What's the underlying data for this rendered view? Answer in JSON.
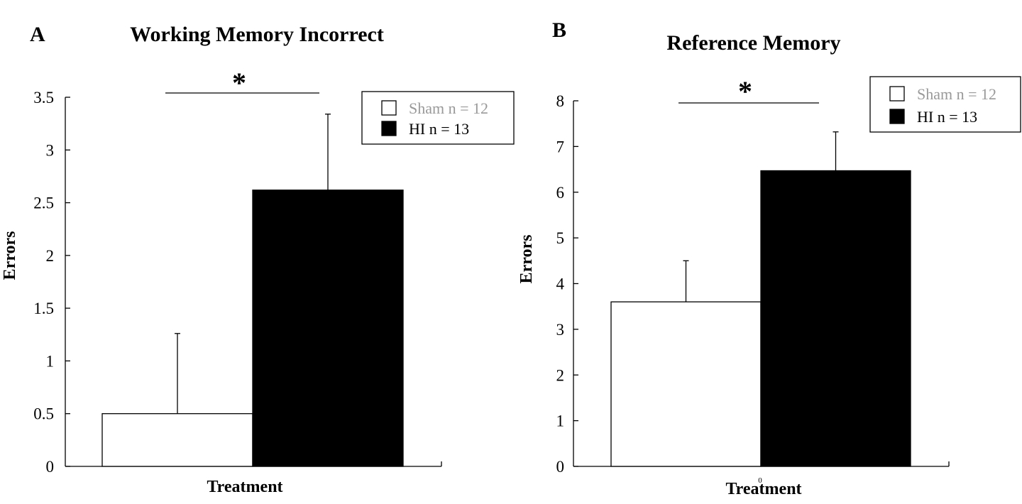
{
  "colors": {
    "sham_fill": "#ffffff",
    "hi_fill": "#000000",
    "sham_legend_text": "#999999",
    "ink": "#000000"
  },
  "chart_data": [
    {
      "type": "bar",
      "panel_label": "A",
      "title": "Working Memory Incorrect",
      "xlabel": "Treatment",
      "ylabel": "Errors",
      "ylim": [
        0,
        3.5
      ],
      "yticks": [
        "0",
        "0.5",
        "1",
        "1.5",
        "2",
        "2.5",
        "3",
        "3.5"
      ],
      "ytick_values": [
        0,
        0.5,
        1,
        1.5,
        2,
        2.5,
        3,
        3.5
      ],
      "series": [
        {
          "name": "Sham n = 12",
          "value": 0.5,
          "error": 0.76
        },
        {
          "name": "HI n = 13",
          "value": 2.62,
          "error": 0.72
        }
      ],
      "significance": "*",
      "legend": "top-right",
      "grid": false
    },
    {
      "type": "bar",
      "panel_label": "B",
      "title": "Reference Memory",
      "xlabel": "Treatment",
      "ylabel": "Errors",
      "ylim": [
        0,
        8
      ],
      "yticks": [
        "0",
        "1",
        "2",
        "3",
        "4",
        "5",
        "6",
        "7",
        "8"
      ],
      "ytick_values": [
        0,
        1,
        2,
        3,
        4,
        5,
        6,
        7,
        8
      ],
      "xtick": "0",
      "series": [
        {
          "name": "Sham n = 12",
          "value": 3.6,
          "error": 0.9
        },
        {
          "name": "HI n = 13",
          "value": 6.47,
          "error": 0.85
        }
      ],
      "significance": "*",
      "legend": "top-right",
      "grid": false
    }
  ]
}
